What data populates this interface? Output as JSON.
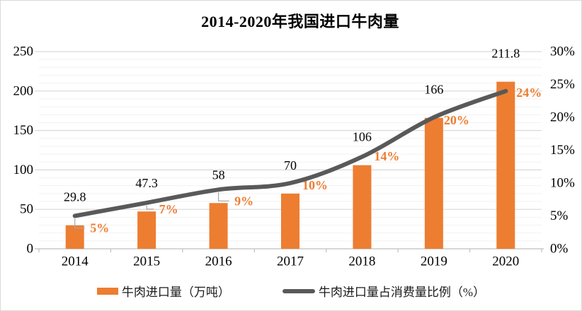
{
  "title": "2014-2020年我国进口牛肉量",
  "legend": [
    {
      "label": "牛肉进口量（万吨）"
    },
    {
      "label": "牛肉进口量占消费量比例（%）"
    }
  ],
  "colors": {
    "bar": "#ED7D31",
    "line": "#595959",
    "pct_label": "#ED7D31",
    "value_label": "#000000",
    "grid_major": "#D9D9D9",
    "grid_minor": "#F2F2F2",
    "axis": "#BFBFBF",
    "leader": "#A6A6A6",
    "tick_label": "#000000"
  },
  "chart_data": {
    "type": "bar+line combo",
    "categories": [
      "2014",
      "2015",
      "2016",
      "2017",
      "2018",
      "2019",
      "2020"
    ],
    "series": [
      {
        "name": "牛肉进口量（万吨）",
        "type": "bar",
        "axis": "left",
        "values": [
          29.8,
          47.3,
          58,
          70,
          106,
          166,
          211.8
        ],
        "labels": [
          "29.8",
          "47.3",
          "58",
          "70",
          "106",
          "166",
          "211.8"
        ]
      },
      {
        "name": "牛肉进口量占消费量比例（%）",
        "type": "line",
        "axis": "right",
        "values": [
          5,
          7,
          9,
          10,
          14,
          20,
          24
        ],
        "labels": [
          "5%",
          "7%",
          "9%",
          "10%",
          "14%",
          "20%",
          "24%"
        ]
      }
    ],
    "left_axis": {
      "min": 0,
      "max": 250,
      "major_step": 50,
      "minor_step": 10,
      "ticks": [
        "0",
        "50",
        "100",
        "150",
        "200",
        "250"
      ]
    },
    "right_axis": {
      "min": 0,
      "max": 30,
      "major_step": 5,
      "ticks": [
        "0%",
        "5%",
        "10%",
        "15%",
        "20%",
        "25%",
        "30%"
      ]
    },
    "grid": "horizontal major + minor",
    "legend_position": "bottom",
    "line_smoothed": true
  }
}
